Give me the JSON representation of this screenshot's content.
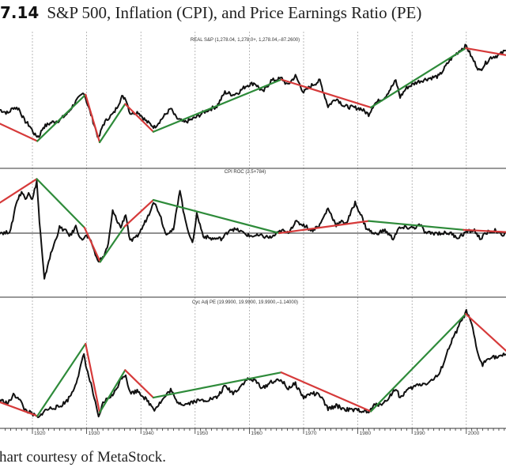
{
  "figure": {
    "number": "7.14",
    "title": "S&P 500, Inflation (CPI), and Price Earnings Ratio (PE)",
    "caption": "hart courtesy of MetaStock."
  },
  "chart_data": [
    {
      "type": "line",
      "id": "sp500",
      "title": "REAL S&P (1,278.04, 1,278.0+, 1,278.04,–87.2600)",
      "xlabel": "",
      "ylabel": "",
      "xlim": [
        1914,
        2007.3
      ],
      "ylim": [
        0,
        1
      ],
      "grid": true,
      "price_series": [
        [
          1914,
          0.45
        ],
        [
          1915.5,
          0.42
        ],
        [
          1916.5,
          0.47
        ],
        [
          1917.5,
          0.46
        ],
        [
          1918.5,
          0.36
        ],
        [
          1919.5,
          0.31
        ],
        [
          1920.5,
          0.23
        ],
        [
          1921.2,
          0.22
        ],
        [
          1922,
          0.3
        ],
        [
          1923.5,
          0.34
        ],
        [
          1925,
          0.36
        ],
        [
          1926.5,
          0.42
        ],
        [
          1928,
          0.52
        ],
        [
          1929.5,
          0.6
        ],
        [
          1930,
          0.52
        ],
        [
          1931,
          0.38
        ],
        [
          1932.2,
          0.2
        ],
        [
          1933,
          0.32
        ],
        [
          1934,
          0.38
        ],
        [
          1935,
          0.42
        ],
        [
          1936.5,
          0.56
        ],
        [
          1937.2,
          0.55
        ],
        [
          1938,
          0.42
        ],
        [
          1939.5,
          0.43
        ],
        [
          1941,
          0.35
        ],
        [
          1942.5,
          0.3
        ],
        [
          1944,
          0.38
        ],
        [
          1945.5,
          0.46
        ],
        [
          1946.5,
          0.38
        ],
        [
          1948,
          0.34
        ],
        [
          1950,
          0.38
        ],
        [
          1952,
          0.44
        ],
        [
          1954,
          0.48
        ],
        [
          1955.5,
          0.6
        ],
        [
          1957,
          0.58
        ],
        [
          1958,
          0.6
        ],
        [
          1959.5,
          0.66
        ],
        [
          1961,
          0.68
        ],
        [
          1962.5,
          0.6
        ],
        [
          1964,
          0.7
        ],
        [
          1966,
          0.72
        ],
        [
          1967,
          0.66
        ],
        [
          1968.5,
          0.74
        ],
        [
          1970,
          0.6
        ],
        [
          1971.5,
          0.66
        ],
        [
          1973,
          0.7
        ],
        [
          1974.5,
          0.48
        ],
        [
          1976,
          0.55
        ],
        [
          1977.5,
          0.48
        ],
        [
          1979,
          0.47
        ],
        [
          1980.5,
          0.46
        ],
        [
          1982,
          0.41
        ],
        [
          1983,
          0.5
        ],
        [
          1985,
          0.56
        ],
        [
          1987,
          0.7
        ],
        [
          1987.8,
          0.56
        ],
        [
          1989,
          0.64
        ],
        [
          1991,
          0.69
        ],
        [
          1993,
          0.72
        ],
        [
          1995,
          0.74
        ],
        [
          1997,
          0.88
        ],
        [
          1999,
          0.97
        ],
        [
          2000,
          1.0
        ],
        [
          2001,
          0.9
        ],
        [
          2002.5,
          0.78
        ],
        [
          2003,
          0.82
        ],
        [
          2004.5,
          0.9
        ],
        [
          2006,
          0.92
        ],
        [
          2007.3,
          0.96
        ]
      ],
      "trend_segments": [
        {
          "color": "red",
          "from": [
            1914,
            0.33
          ],
          "to": [
            1920.9,
            0.18
          ]
        },
        {
          "color": "green",
          "from": [
            1920.9,
            0.18
          ],
          "to": [
            1929.8,
            0.58
          ]
        },
        {
          "color": "red",
          "from": [
            1929.8,
            0.58
          ],
          "to": [
            1932.4,
            0.17
          ]
        },
        {
          "color": "green",
          "from": [
            1932.4,
            0.17
          ],
          "to": [
            1937.1,
            0.5
          ]
        },
        {
          "color": "red",
          "from": [
            1937.1,
            0.5
          ],
          "to": [
            1942.3,
            0.26
          ]
        },
        {
          "color": "green",
          "from": [
            1942.3,
            0.26
          ],
          "to": [
            1965.9,
            0.71
          ]
        },
        {
          "color": "red",
          "from": [
            1965.9,
            0.71
          ],
          "to": [
            1982.4,
            0.47
          ]
        },
        {
          "color": "green",
          "from": [
            1982.4,
            0.47
          ],
          "to": [
            1999.9,
            0.98
          ]
        },
        {
          "color": "red",
          "from": [
            1999.9,
            0.98
          ],
          "to": [
            2007.3,
            0.92
          ]
        }
      ]
    },
    {
      "type": "line",
      "id": "cpi",
      "title": "CPI ROC (2.5+784)",
      "xlabel": "",
      "ylabel": "",
      "xlim": [
        1914,
        2007.3
      ],
      "ylim": [
        -1,
        1
      ],
      "zero_line": 0,
      "grid": true,
      "price_series": [
        [
          1914,
          0.02
        ],
        [
          1915,
          0.0
        ],
        [
          1916,
          0.05
        ],
        [
          1917,
          0.55
        ],
        [
          1918,
          0.75
        ],
        [
          1918.7,
          0.62
        ],
        [
          1919.3,
          0.75
        ],
        [
          1920,
          0.6
        ],
        [
          1920.8,
          0.95
        ],
        [
          1921.3,
          0.2
        ],
        [
          1922.2,
          -0.85
        ],
        [
          1923,
          -0.5
        ],
        [
          1924,
          -0.2
        ],
        [
          1925,
          0.1
        ],
        [
          1926,
          0.05
        ],
        [
          1927,
          -0.05
        ],
        [
          1928,
          0.12
        ],
        [
          1929,
          -0.12
        ],
        [
          1930,
          -0.05
        ],
        [
          1931,
          -0.2
        ],
        [
          1932,
          -0.5
        ],
        [
          1933,
          -0.45
        ],
        [
          1934,
          -0.2
        ],
        [
          1934.8,
          0.4
        ],
        [
          1935.5,
          0.25
        ],
        [
          1936.3,
          0.1
        ],
        [
          1937.2,
          0.35
        ],
        [
          1938,
          -0.15
        ],
        [
          1939,
          -0.1
        ],
        [
          1940,
          0.05
        ],
        [
          1941.5,
          0.35
        ],
        [
          1942.3,
          0.58
        ],
        [
          1943.5,
          0.35
        ],
        [
          1944.5,
          0.0
        ],
        [
          1946,
          0.05
        ],
        [
          1947.2,
          0.8
        ],
        [
          1948,
          0.3
        ],
        [
          1949.5,
          -0.2
        ],
        [
          1950.3,
          0.35
        ],
        [
          1951.5,
          -0.05
        ],
        [
          1953,
          -0.1
        ],
        [
          1955,
          -0.1
        ],
        [
          1956.5,
          0.08
        ],
        [
          1958,
          0.05
        ],
        [
          1960,
          -0.05
        ],
        [
          1962,
          -0.05
        ],
        [
          1964,
          -0.08
        ],
        [
          1966,
          0.05
        ],
        [
          1967,
          0.0
        ],
        [
          1968.5,
          0.2
        ],
        [
          1970,
          0.15
        ],
        [
          1971.5,
          0.05
        ],
        [
          1973,
          0.15
        ],
        [
          1974.5,
          0.45
        ],
        [
          1976,
          0.15
        ],
        [
          1977,
          0.2
        ],
        [
          1978,
          0.2
        ],
        [
          1979.5,
          0.55
        ],
        [
          1980.5,
          0.35
        ],
        [
          1981.5,
          0.1
        ],
        [
          1983,
          -0.02
        ],
        [
          1985,
          0.05
        ],
        [
          1986.5,
          -0.1
        ],
        [
          1987.5,
          0.08
        ],
        [
          1989,
          0.1
        ],
        [
          1990.5,
          0.1
        ],
        [
          1991.5,
          0.15
        ],
        [
          1992.5,
          0.0
        ],
        [
          1995,
          0.0
        ],
        [
          1997,
          0.0
        ],
        [
          1998.5,
          -0.08
        ],
        [
          2000,
          0.02
        ],
        [
          2001.5,
          0.05
        ],
        [
          2002.5,
          -0.1
        ],
        [
          2004,
          0.02
        ],
        [
          2005.5,
          0.05
        ],
        [
          2006.5,
          -0.05
        ],
        [
          2007.3,
          0.02
        ]
      ],
      "trend_segments": [
        {
          "color": "red",
          "from": [
            1914,
            0.55
          ],
          "to": [
            1920.8,
            0.98
          ]
        },
        {
          "color": "green",
          "from": [
            1920.8,
            0.98
          ],
          "to": [
            1929.6,
            0.1
          ]
        },
        {
          "color": "red",
          "from": [
            1929.6,
            0.1
          ],
          "to": [
            1932.5,
            -0.52
          ]
        },
        {
          "color": "green",
          "from": [
            1932.5,
            -0.52
          ],
          "to": [
            1937,
            0.12
          ]
        },
        {
          "color": "red",
          "from": [
            1937,
            0.12
          ],
          "to": [
            1942.3,
            0.6
          ]
        },
        {
          "color": "green",
          "from": [
            1942.3,
            0.6
          ],
          "to": [
            1965.5,
            0.0
          ]
        },
        {
          "color": "red",
          "from": [
            1965.5,
            0.0
          ],
          "to": [
            1982,
            0.22
          ]
        },
        {
          "color": "green",
          "from": [
            1982,
            0.22
          ],
          "to": [
            1999.5,
            0.06
          ]
        },
        {
          "color": "red",
          "from": [
            1999.5,
            0.06
          ],
          "to": [
            2007.3,
            0.02
          ]
        }
      ]
    },
    {
      "type": "line",
      "id": "pe",
      "title": "Cyc Adj PE (19.9900, 19.9900, 19.9900,–1.14000)",
      "xlabel": "",
      "ylabel": "",
      "xlim": [
        1914,
        2007.3
      ],
      "ylim": [
        0,
        1
      ],
      "grid": true,
      "x_ticks": [
        "1920",
        "1930",
        "1940",
        "1950",
        "1960",
        "1970",
        "1980",
        "1990",
        "2000"
      ],
      "price_series": [
        [
          1914,
          0.2
        ],
        [
          1915.5,
          0.17
        ],
        [
          1916.5,
          0.24
        ],
        [
          1917.5,
          0.22
        ],
        [
          1918.5,
          0.12
        ],
        [
          1919.5,
          0.09
        ],
        [
          1920.5,
          0.06
        ],
        [
          1921.2,
          0.04
        ],
        [
          1922,
          0.1
        ],
        [
          1923.5,
          0.13
        ],
        [
          1925,
          0.14
        ],
        [
          1926.5,
          0.2
        ],
        [
          1927.5,
          0.28
        ],
        [
          1928.5,
          0.42
        ],
        [
          1929.5,
          0.6
        ],
        [
          1930,
          0.47
        ],
        [
          1931,
          0.3
        ],
        [
          1932.2,
          0.04
        ],
        [
          1933,
          0.17
        ],
        [
          1934,
          0.22
        ],
        [
          1935,
          0.25
        ],
        [
          1936.5,
          0.4
        ],
        [
          1937.2,
          0.42
        ],
        [
          1938,
          0.26
        ],
        [
          1939.5,
          0.28
        ],
        [
          1941,
          0.2
        ],
        [
          1942.5,
          0.12
        ],
        [
          1944,
          0.2
        ],
        [
          1945.5,
          0.29
        ],
        [
          1946.5,
          0.19
        ],
        [
          1948,
          0.16
        ],
        [
          1950,
          0.19
        ],
        [
          1952,
          0.2
        ],
        [
          1954,
          0.22
        ],
        [
          1955.5,
          0.32
        ],
        [
          1957,
          0.26
        ],
        [
          1958,
          0.3
        ],
        [
          1959.5,
          0.38
        ],
        [
          1961,
          0.37
        ],
        [
          1962.5,
          0.3
        ],
        [
          1964,
          0.36
        ],
        [
          1966,
          0.37
        ],
        [
          1967,
          0.3
        ],
        [
          1968.5,
          0.34
        ],
        [
          1970,
          0.22
        ],
        [
          1971.5,
          0.26
        ],
        [
          1973,
          0.24
        ],
        [
          1974.5,
          0.12
        ],
        [
          1976,
          0.15
        ],
        [
          1977.5,
          0.12
        ],
        [
          1979,
          0.11
        ],
        [
          1980.5,
          0.11
        ],
        [
          1982,
          0.09
        ],
        [
          1983,
          0.15
        ],
        [
          1985,
          0.18
        ],
        [
          1987,
          0.3
        ],
        [
          1987.8,
          0.22
        ],
        [
          1989,
          0.28
        ],
        [
          1991,
          0.33
        ],
        [
          1993,
          0.35
        ],
        [
          1995,
          0.42
        ],
        [
          1997,
          0.68
        ],
        [
          1999,
          0.88
        ],
        [
          2000,
          0.97
        ],
        [
          2001,
          0.86
        ],
        [
          2002,
          0.62
        ],
        [
          2003,
          0.5
        ],
        [
          2003.5,
          0.54
        ],
        [
          2004.5,
          0.58
        ],
        [
          2006,
          0.57
        ],
        [
          2007.3,
          0.6
        ]
      ],
      "trend_segments": [
        {
          "color": "red",
          "from": [
            1914,
            0.18
          ],
          "to": [
            1920.9,
            0.06
          ]
        },
        {
          "color": "green",
          "from": [
            1920.9,
            0.06
          ],
          "to": [
            1929.8,
            0.69
          ]
        },
        {
          "color": "red",
          "from": [
            1929.8,
            0.69
          ],
          "to": [
            1932.4,
            0.09
          ]
        },
        {
          "color": "green",
          "from": [
            1932.4,
            0.09
          ],
          "to": [
            1937.1,
            0.46
          ]
        },
        {
          "color": "red",
          "from": [
            1937.1,
            0.46
          ],
          "to": [
            1942.3,
            0.22
          ]
        },
        {
          "color": "green",
          "from": [
            1942.3,
            0.22
          ],
          "to": [
            1965.9,
            0.44
          ]
        },
        {
          "color": "red",
          "from": [
            1965.9,
            0.44
          ],
          "to": [
            1982.4,
            0.1
          ]
        },
        {
          "color": "green",
          "from": [
            1982.4,
            0.1
          ],
          "to": [
            1999.9,
            0.95
          ]
        },
        {
          "color": "red",
          "from": [
            1999.9,
            0.95
          ],
          "to": [
            2007.3,
            0.63
          ]
        }
      ]
    }
  ],
  "colors": {
    "price": "#111111",
    "red": "#d63a3a",
    "green": "#2e8b3a",
    "grid": "#9a9a9a",
    "divider": "#333333"
  }
}
